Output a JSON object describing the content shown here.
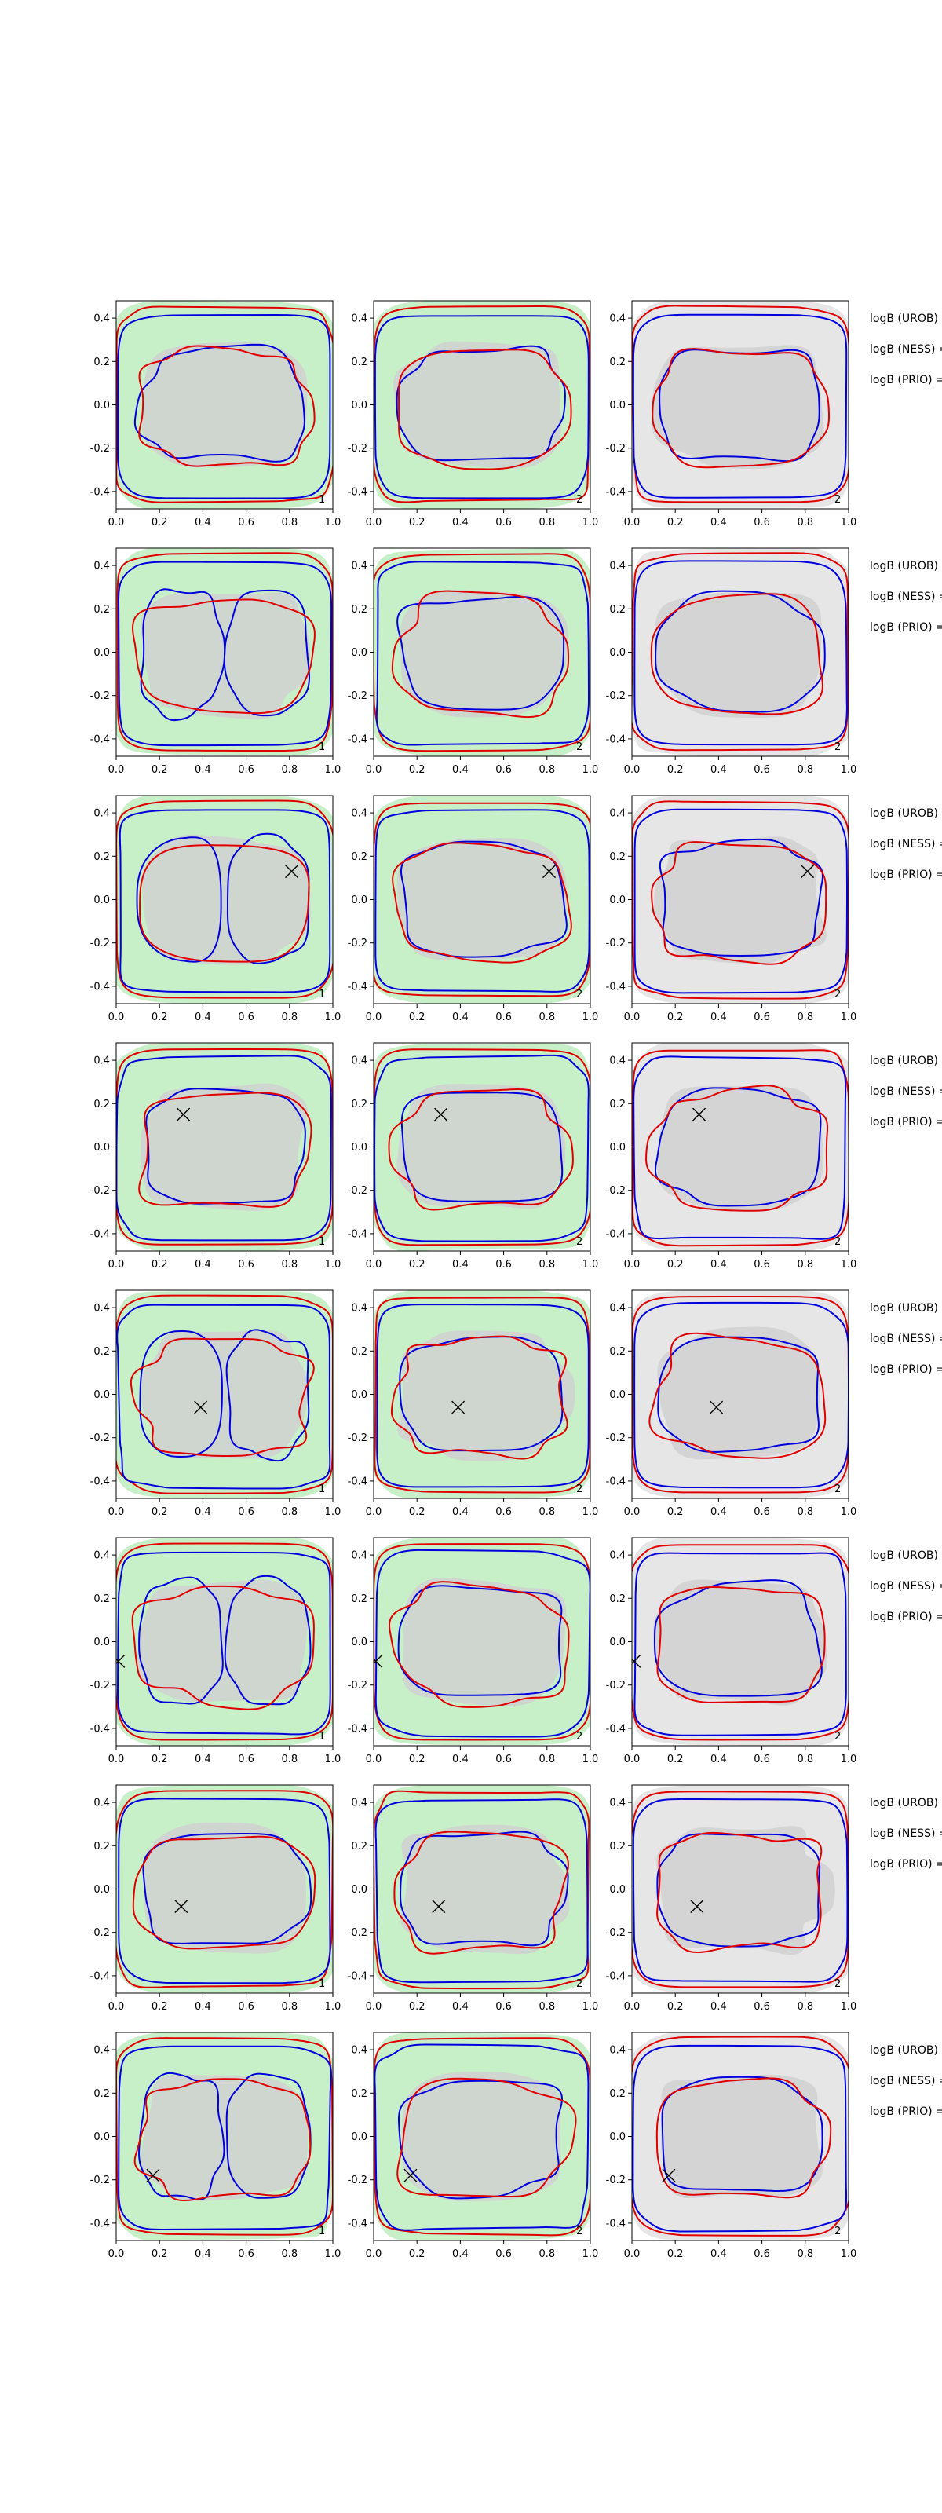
{
  "chart_data": {
    "type": "contour-grid",
    "rows": 8,
    "cols": 3,
    "xlim": [
      0.0,
      1.0
    ],
    "ylim": [
      -0.48,
      0.48
    ],
    "xticks": [
      "0.0",
      "0.2",
      "0.4",
      "0.6",
      "0.8",
      "1.0"
    ],
    "yticks": [
      "0.4",
      "0.2",
      "0.0",
      "-0.2",
      "-0.4"
    ],
    "yticks_values": [
      0.4,
      0.2,
      0.0,
      -0.2,
      -0.4
    ],
    "xticks_values": [
      0.0,
      0.2,
      0.4,
      0.6,
      0.8,
      1.0
    ],
    "panel_labels": [
      "1",
      "2",
      "2"
    ],
    "side_labels": [
      "logB (UROB) =",
      "logB (NESS) =",
      "logB (PRIO) ="
    ],
    "colors": {
      "red_contour": "#e00000",
      "blue_contour": "#0000dd",
      "green_fill": "#c8f0c8",
      "grey_fill": "#d0d0d0",
      "light_grey_bg": "#e6e6e6",
      "marker": "#000000"
    },
    "markers": [
      null,
      null,
      {
        "x": 0.81,
        "y": 0.13
      },
      {
        "x": 0.31,
        "y": 0.15
      },
      {
        "x": 0.39,
        "y": -0.06
      },
      {
        "x": 0.01,
        "y": -0.09
      },
      {
        "x": 0.3,
        "y": -0.08
      },
      {
        "x": 0.17,
        "y": -0.18
      }
    ]
  }
}
